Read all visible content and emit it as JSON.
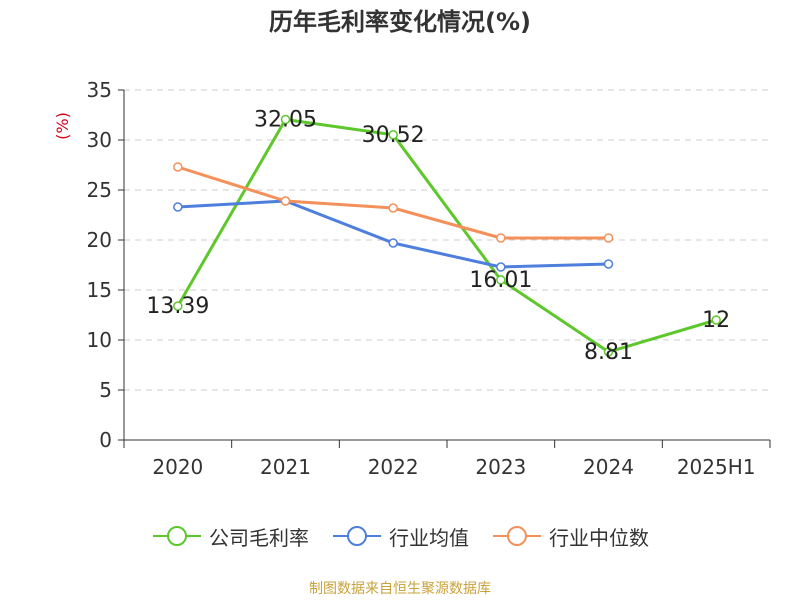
{
  "chart_data": {
    "type": "line",
    "title": "历年毛利率变化情况(%)",
    "ylabel": "(%)",
    "categories": [
      "2020",
      "2021",
      "2022",
      "2023",
      "2024",
      "2025H1"
    ],
    "ylim": [
      0,
      35
    ],
    "yticks": [
      0,
      5,
      10,
      15,
      20,
      25,
      30,
      35
    ],
    "grid": true,
    "legend_position": "bottom",
    "series": [
      {
        "name": "公司毛利率",
        "color": "#5dc72b",
        "values": [
          13.39,
          32.05,
          30.52,
          16.01,
          8.81,
          12
        ],
        "labels": [
          "13.39",
          "32.05",
          "30.52",
          "16.01",
          "8.81",
          "12"
        ]
      },
      {
        "name": "行业均值",
        "color": "#4e7fdc",
        "values": [
          23.3,
          23.9,
          19.7,
          17.3,
          17.6,
          null
        ]
      },
      {
        "name": "行业中位数",
        "color": "#f4915b",
        "values": [
          27.3,
          23.9,
          23.2,
          20.2,
          20.2,
          null
        ]
      }
    ]
  },
  "source_note": "制图数据来自恒生聚源数据库"
}
